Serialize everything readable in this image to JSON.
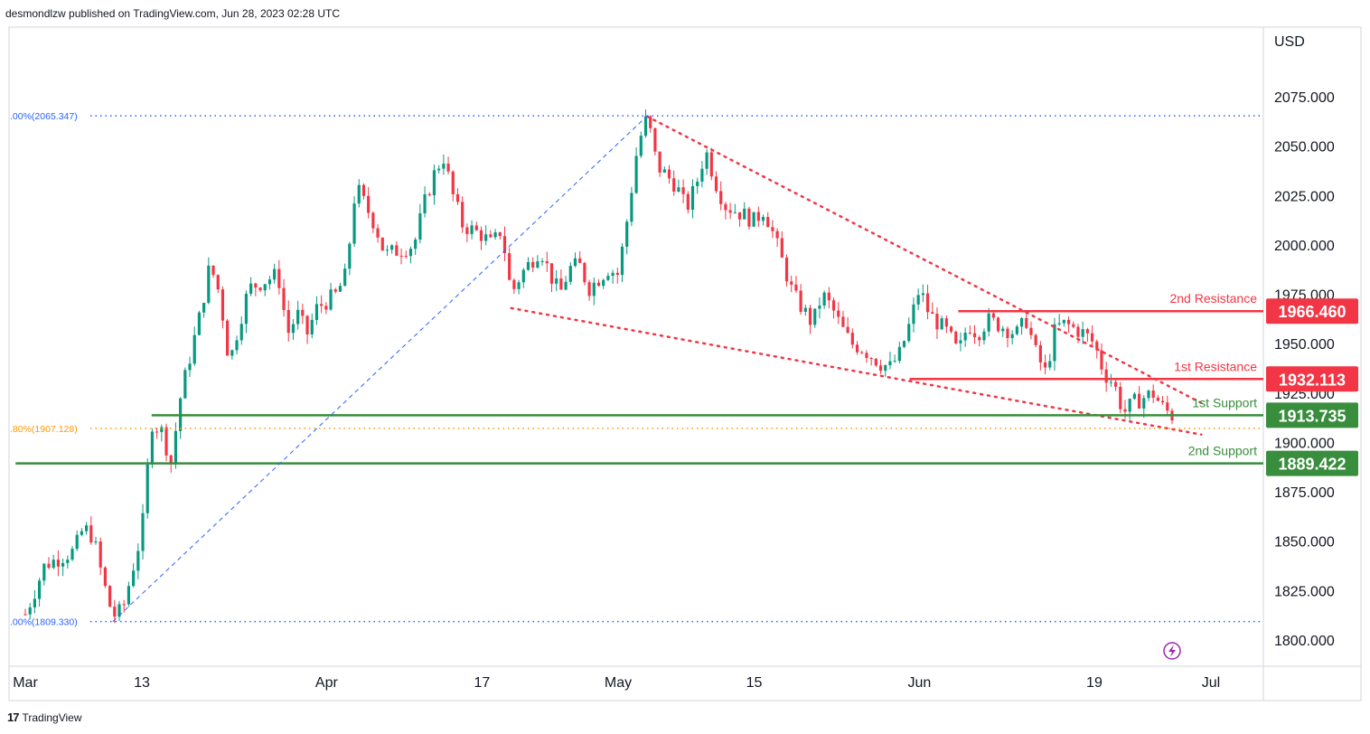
{
  "header": {
    "published": "desmondlzw published on TradingView.com, Jun 28, 2023 02:28 UTC"
  },
  "footer": {
    "brand": "TradingView",
    "logo": "17"
  },
  "colors": {
    "up": "#089981",
    "down": "#f23645",
    "resistance": "#f23645",
    "support": "#388e3c",
    "fib_line": "#2962ff",
    "fib_golden": "#ff9800",
    "trend_dots": "#f23645"
  },
  "chart_data": {
    "type": "candlestick",
    "currency": "USD",
    "ylim": [
      1790,
      2088
    ],
    "y_ticks": [
      "1800.000",
      "1825.000",
      "1850.000",
      "1875.000",
      "1900.000",
      "1925.000",
      "1950.000",
      "1975.000",
      "2000.000",
      "2025.000",
      "2050.000",
      "2075.000"
    ],
    "x_ticks": [
      {
        "label": "Mar",
        "date": "2023-03-01"
      },
      {
        "label": "13",
        "date": "2023-03-13"
      },
      {
        "label": "Apr",
        "date": "2023-04-01"
      },
      {
        "label": "17",
        "date": "2023-04-17"
      },
      {
        "label": "May",
        "date": "2023-05-01"
      },
      {
        "label": "15",
        "date": "2023-05-15"
      },
      {
        "label": "Jun",
        "date": "2023-06-01"
      },
      {
        "label": "19",
        "date": "2023-06-19"
      },
      {
        "label": "Jul",
        "date": "2023-07-01"
      }
    ],
    "path": [
      [
        "2023-03-01",
        1813
      ],
      [
        "2023-03-02",
        1825
      ],
      [
        "2023-03-03",
        1838
      ],
      [
        "2023-03-06",
        1845
      ],
      [
        "2023-03-07",
        1857
      ],
      [
        "2023-03-08",
        1852
      ],
      [
        "2023-03-09",
        1830
      ],
      [
        "2023-03-10",
        1812
      ],
      [
        "2023-03-11",
        1815
      ],
      [
        "2023-03-13",
        1855
      ],
      [
        "2023-03-14",
        1910
      ],
      [
        "2023-03-15",
        1906
      ],
      [
        "2023-03-16",
        1890
      ],
      [
        "2023-03-17",
        1924
      ],
      [
        "2023-03-19",
        1965
      ],
      [
        "2023-03-20",
        1990
      ],
      [
        "2023-03-21",
        1975
      ],
      [
        "2023-03-22",
        1940
      ],
      [
        "2023-03-23",
        1960
      ],
      [
        "2023-03-24",
        1978
      ],
      [
        "2023-03-27",
        1985
      ],
      [
        "2023-03-28",
        1955
      ],
      [
        "2023-03-29",
        1965
      ],
      [
        "2023-03-30",
        1955
      ],
      [
        "2023-03-31",
        1968
      ],
      [
        "2023-04-02",
        1975
      ],
      [
        "2023-04-03",
        1985
      ],
      [
        "2023-04-04",
        2030
      ],
      [
        "2023-04-05",
        2020
      ],
      [
        "2023-04-06",
        2010
      ],
      [
        "2023-04-07",
        1995
      ],
      [
        "2023-04-10",
        2000
      ],
      [
        "2023-04-11",
        2020
      ],
      [
        "2023-04-12",
        2035
      ],
      [
        "2023-04-13",
        2045
      ],
      [
        "2023-04-14",
        2025
      ],
      [
        "2023-04-15",
        2010
      ],
      [
        "2023-04-17",
        2005
      ],
      [
        "2023-04-18",
        2000
      ],
      [
        "2023-04-19",
        2008
      ],
      [
        "2023-04-20",
        1975
      ],
      [
        "2023-04-21",
        1985
      ],
      [
        "2023-04-23",
        1998
      ],
      [
        "2023-04-24",
        1985
      ],
      [
        "2023-04-25",
        1975
      ],
      [
        "2023-04-26",
        1988
      ],
      [
        "2023-04-27",
        1990
      ],
      [
        "2023-04-28",
        1978
      ],
      [
        "2023-04-30",
        1988
      ],
      [
        "2023-05-01",
        1985
      ],
      [
        "2023-05-02",
        2015
      ],
      [
        "2023-05-03",
        2050
      ],
      [
        "2023-05-04",
        2065
      ],
      [
        "2023-05-05",
        2040
      ],
      [
        "2023-05-07",
        2030
      ],
      [
        "2023-05-08",
        2018
      ],
      [
        "2023-05-09",
        2030
      ],
      [
        "2023-05-10",
        2048
      ],
      [
        "2023-05-11",
        2032
      ],
      [
        "2023-05-12",
        2020
      ],
      [
        "2023-05-14",
        2015
      ],
      [
        "2023-05-15",
        2012
      ],
      [
        "2023-05-16",
        2018
      ],
      [
        "2023-05-17",
        2005
      ],
      [
        "2023-05-18",
        1990
      ],
      [
        "2023-05-19",
        1975
      ],
      [
        "2023-05-21",
        1960
      ],
      [
        "2023-05-22",
        1975
      ],
      [
        "2023-05-23",
        1968
      ],
      [
        "2023-05-24",
        1958
      ],
      [
        "2023-05-25",
        1950
      ],
      [
        "2023-05-26",
        1948
      ],
      [
        "2023-05-28",
        1940
      ],
      [
        "2023-05-29",
        1938
      ],
      [
        "2023-05-30",
        1945
      ],
      [
        "2023-05-31",
        1960
      ],
      [
        "2023-06-01",
        1978
      ],
      [
        "2023-06-02",
        1965
      ],
      [
        "2023-06-04",
        1955
      ],
      [
        "2023-06-05",
        1945
      ],
      [
        "2023-06-06",
        1960
      ],
      [
        "2023-06-07",
        1955
      ],
      [
        "2023-06-08",
        1962
      ],
      [
        "2023-06-09",
        1960
      ],
      [
        "2023-06-11",
        1955
      ],
      [
        "2023-06-12",
        1962
      ],
      [
        "2023-06-13",
        1945
      ],
      [
        "2023-06-14",
        1935
      ],
      [
        "2023-06-15",
        1958
      ],
      [
        "2023-06-16",
        1960
      ],
      [
        "2023-06-18",
        1955
      ],
      [
        "2023-06-19",
        1950
      ],
      [
        "2023-06-20",
        1935
      ],
      [
        "2023-06-21",
        1930
      ],
      [
        "2023-06-22",
        1915
      ],
      [
        "2023-06-23",
        1920
      ],
      [
        "2023-06-25",
        1925
      ],
      [
        "2023-06-26",
        1918
      ],
      [
        "2023-06-27",
        1913.5
      ]
    ],
    "fib_levels": [
      {
        "label": ".00%(2065.347)",
        "value": 2065.347,
        "color": "#2962ff"
      },
      {
        "label": ".80%(1907.128)",
        "value": 1907.128,
        "color": "#ff9800"
      },
      {
        "label": ".00%(1809.330)",
        "value": 1809.33,
        "color": "#2962ff"
      }
    ],
    "fib_anchor_line": {
      "from": [
        "2023-03-10",
        1809.33
      ],
      "to": [
        "2023-05-04",
        2065.347
      ]
    },
    "levels": [
      {
        "label": "2nd Resistance",
        "price": "1966.460",
        "value": 1966.46,
        "start": "2023-06-05",
        "kind": "resistance"
      },
      {
        "label": "1st Resistance",
        "price": "1932.113",
        "value": 1932.113,
        "start": "2023-05-31",
        "kind": "resistance"
      },
      {
        "label": "1st Support",
        "price": "1913.735",
        "value": 1913.735,
        "start": "2023-03-14",
        "kind": "support"
      },
      {
        "label": "2nd Support",
        "price": "1889.422",
        "value": 1889.422,
        "start": "2023-02-28",
        "kind": "support"
      }
    ],
    "trendlines": [
      {
        "from": [
          "2023-05-04",
          2065
        ],
        "to": [
          "2023-06-30",
          1920
        ]
      },
      {
        "from": [
          "2023-04-20",
          1968
        ],
        "to": [
          "2023-06-30",
          1904
        ]
      }
    ],
    "grid": false
  }
}
